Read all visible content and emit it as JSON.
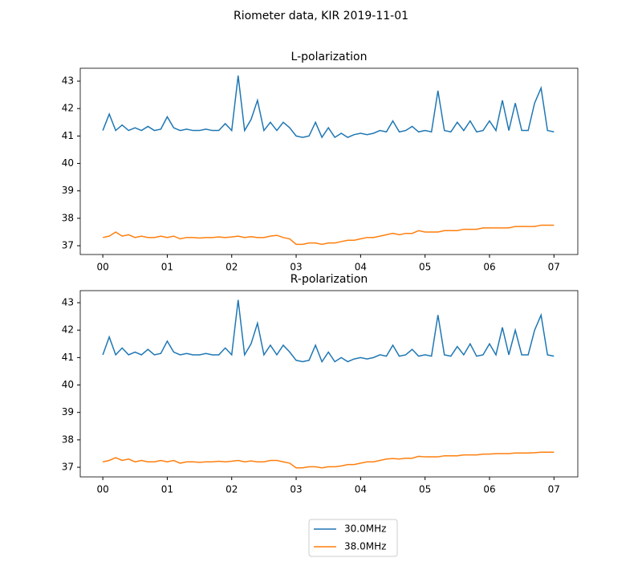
{
  "title": "Riometer data, KIR 2019-11-01",
  "chart_data": [
    {
      "type": "line",
      "title": "L-polarization",
      "x": [
        0,
        0.1,
        0.2,
        0.3,
        0.4,
        0.5,
        0.6,
        0.7,
        0.8,
        0.9,
        1,
        1.1,
        1.2,
        1.3,
        1.4,
        1.5,
        1.6,
        1.7,
        1.8,
        1.9,
        2,
        2.1,
        2.2,
        2.3,
        2.4,
        2.5,
        2.6,
        2.7,
        2.8,
        2.9,
        3,
        3.1,
        3.2,
        3.3,
        3.4,
        3.5,
        3.6,
        3.7,
        3.8,
        3.9,
        4,
        4.1,
        4.2,
        4.3,
        4.4,
        4.5,
        4.6,
        4.7,
        4.8,
        4.9,
        5,
        5.1,
        5.2,
        5.3,
        5.4,
        5.5,
        5.6,
        5.7,
        5.8,
        5.9,
        6,
        6.1,
        6.2,
        6.3,
        6.4,
        6.5,
        6.6,
        6.7,
        6.8,
        6.9,
        7
      ],
      "series": [
        {
          "name": "30.0MHz",
          "color": "#1f77b4",
          "values": [
            41.2,
            41.8,
            41.2,
            41.4,
            41.2,
            41.3,
            41.2,
            41.35,
            41.2,
            41.25,
            41.7,
            41.3,
            41.2,
            41.25,
            41.2,
            41.2,
            41.25,
            41.2,
            41.2,
            41.45,
            41.2,
            43.2,
            41.2,
            41.6,
            42.3,
            41.2,
            41.5,
            41.2,
            41.5,
            41.3,
            41.0,
            40.95,
            41.0,
            41.5,
            40.95,
            41.3,
            40.95,
            41.1,
            40.95,
            41.05,
            41.1,
            41.05,
            41.1,
            41.2,
            41.15,
            41.55,
            41.15,
            41.2,
            41.35,
            41.15,
            41.2,
            41.15,
            42.65,
            41.2,
            41.15,
            41.5,
            41.2,
            41.55,
            41.15,
            41.2,
            41.55,
            41.2,
            42.3,
            41.2,
            42.2,
            41.2,
            41.2,
            42.2,
            42.75,
            41.2,
            41.15
          ]
        },
        {
          "name": "38.0MHz",
          "color": "#ff7f0e",
          "values": [
            37.3,
            37.35,
            37.5,
            37.35,
            37.4,
            37.3,
            37.35,
            37.3,
            37.3,
            37.35,
            37.3,
            37.35,
            37.25,
            37.3,
            37.3,
            37.28,
            37.3,
            37.3,
            37.32,
            37.3,
            37.32,
            37.35,
            37.3,
            37.33,
            37.3,
            37.3,
            37.35,
            37.38,
            37.3,
            37.25,
            37.05,
            37.05,
            37.1,
            37.1,
            37.05,
            37.1,
            37.1,
            37.15,
            37.2,
            37.2,
            37.25,
            37.3,
            37.3,
            37.35,
            37.4,
            37.45,
            37.4,
            37.45,
            37.45,
            37.55,
            37.5,
            37.5,
            37.5,
            37.55,
            37.55,
            37.55,
            37.6,
            37.6,
            37.6,
            37.65,
            37.65,
            37.65,
            37.65,
            37.65,
            37.7,
            37.7,
            37.7,
            37.7,
            37.75,
            37.75,
            37.75
          ]
        }
      ],
      "xlim": [
        -0.35,
        7.37
      ],
      "ylim": [
        36.68,
        43.47
      ],
      "xticks": [
        {
          "value": 0,
          "label": "00"
        },
        {
          "value": 1,
          "label": "01"
        },
        {
          "value": 2,
          "label": "02"
        },
        {
          "value": 3,
          "label": "03"
        },
        {
          "value": 4,
          "label": "04"
        },
        {
          "value": 5,
          "label": "05"
        },
        {
          "value": 6,
          "label": "06"
        },
        {
          "value": 7,
          "label": "07"
        }
      ],
      "yticks": [
        37,
        38,
        39,
        40,
        41,
        42,
        43
      ]
    },
    {
      "type": "line",
      "title": "R-polarization",
      "x": [
        0,
        0.1,
        0.2,
        0.3,
        0.4,
        0.5,
        0.6,
        0.7,
        0.8,
        0.9,
        1,
        1.1,
        1.2,
        1.3,
        1.4,
        1.5,
        1.6,
        1.7,
        1.8,
        1.9,
        2,
        2.1,
        2.2,
        2.3,
        2.4,
        2.5,
        2.6,
        2.7,
        2.8,
        2.9,
        3,
        3.1,
        3.2,
        3.3,
        3.4,
        3.5,
        3.6,
        3.7,
        3.8,
        3.9,
        4,
        4.1,
        4.2,
        4.3,
        4.4,
        4.5,
        4.6,
        4.7,
        4.8,
        4.9,
        5,
        5.1,
        5.2,
        5.3,
        5.4,
        5.5,
        5.6,
        5.7,
        5.8,
        5.9,
        6,
        6.1,
        6.2,
        6.3,
        6.4,
        6.5,
        6.6,
        6.7,
        6.8,
        6.9,
        7
      ],
      "series": [
        {
          "color": "#1f77b4",
          "values": [
            41.1,
            41.75,
            41.1,
            41.35,
            41.1,
            41.2,
            41.1,
            41.3,
            41.1,
            41.15,
            41.6,
            41.2,
            41.1,
            41.15,
            41.1,
            41.1,
            41.15,
            41.1,
            41.1,
            41.35,
            41.1,
            43.1,
            41.1,
            41.5,
            42.25,
            41.1,
            41.45,
            41.1,
            41.45,
            41.2,
            40.9,
            40.85,
            40.9,
            41.45,
            40.85,
            41.2,
            40.85,
            41.0,
            40.85,
            40.95,
            41.0,
            40.95,
            41.0,
            41.1,
            41.05,
            41.45,
            41.05,
            41.1,
            41.3,
            41.05,
            41.1,
            41.05,
            42.55,
            41.1,
            41.05,
            41.4,
            41.1,
            41.5,
            41.05,
            41.1,
            41.5,
            41.1,
            42.1,
            41.1,
            42.0,
            41.1,
            41.1,
            42.0,
            42.55,
            41.1,
            41.05
          ]
        },
        {
          "color": "#ff7f0e",
          "values": [
            37.2,
            37.25,
            37.35,
            37.25,
            37.3,
            37.2,
            37.25,
            37.2,
            37.2,
            37.25,
            37.2,
            37.25,
            37.15,
            37.2,
            37.2,
            37.18,
            37.2,
            37.2,
            37.22,
            37.2,
            37.22,
            37.25,
            37.2,
            37.23,
            37.2,
            37.2,
            37.25,
            37.25,
            37.2,
            37.15,
            36.98,
            36.98,
            37.02,
            37.02,
            36.98,
            37.02,
            37.02,
            37.05,
            37.1,
            37.1,
            37.15,
            37.2,
            37.2,
            37.25,
            37.3,
            37.32,
            37.3,
            37.33,
            37.33,
            37.4,
            37.38,
            37.38,
            37.38,
            37.42,
            37.42,
            37.42,
            37.45,
            37.45,
            37.45,
            37.48,
            37.48,
            37.5,
            37.5,
            37.5,
            37.52,
            37.52,
            37.52,
            37.53,
            37.55,
            37.55,
            37.55
          ]
        }
      ],
      "xlim": [
        -0.35,
        7.37
      ],
      "ylim": [
        36.65,
        43.44
      ],
      "xticks": [
        {
          "value": 0,
          "label": "00"
        },
        {
          "value": 1,
          "label": "01"
        },
        {
          "value": 2,
          "label": "02"
        },
        {
          "value": 3,
          "label": "03"
        },
        {
          "value": 4,
          "label": "04"
        },
        {
          "value": 5,
          "label": "05"
        },
        {
          "value": 6,
          "label": "06"
        },
        {
          "value": 7,
          "label": "07"
        }
      ],
      "yticks": [
        37,
        38,
        39,
        40,
        41,
        42,
        43
      ]
    }
  ]
}
